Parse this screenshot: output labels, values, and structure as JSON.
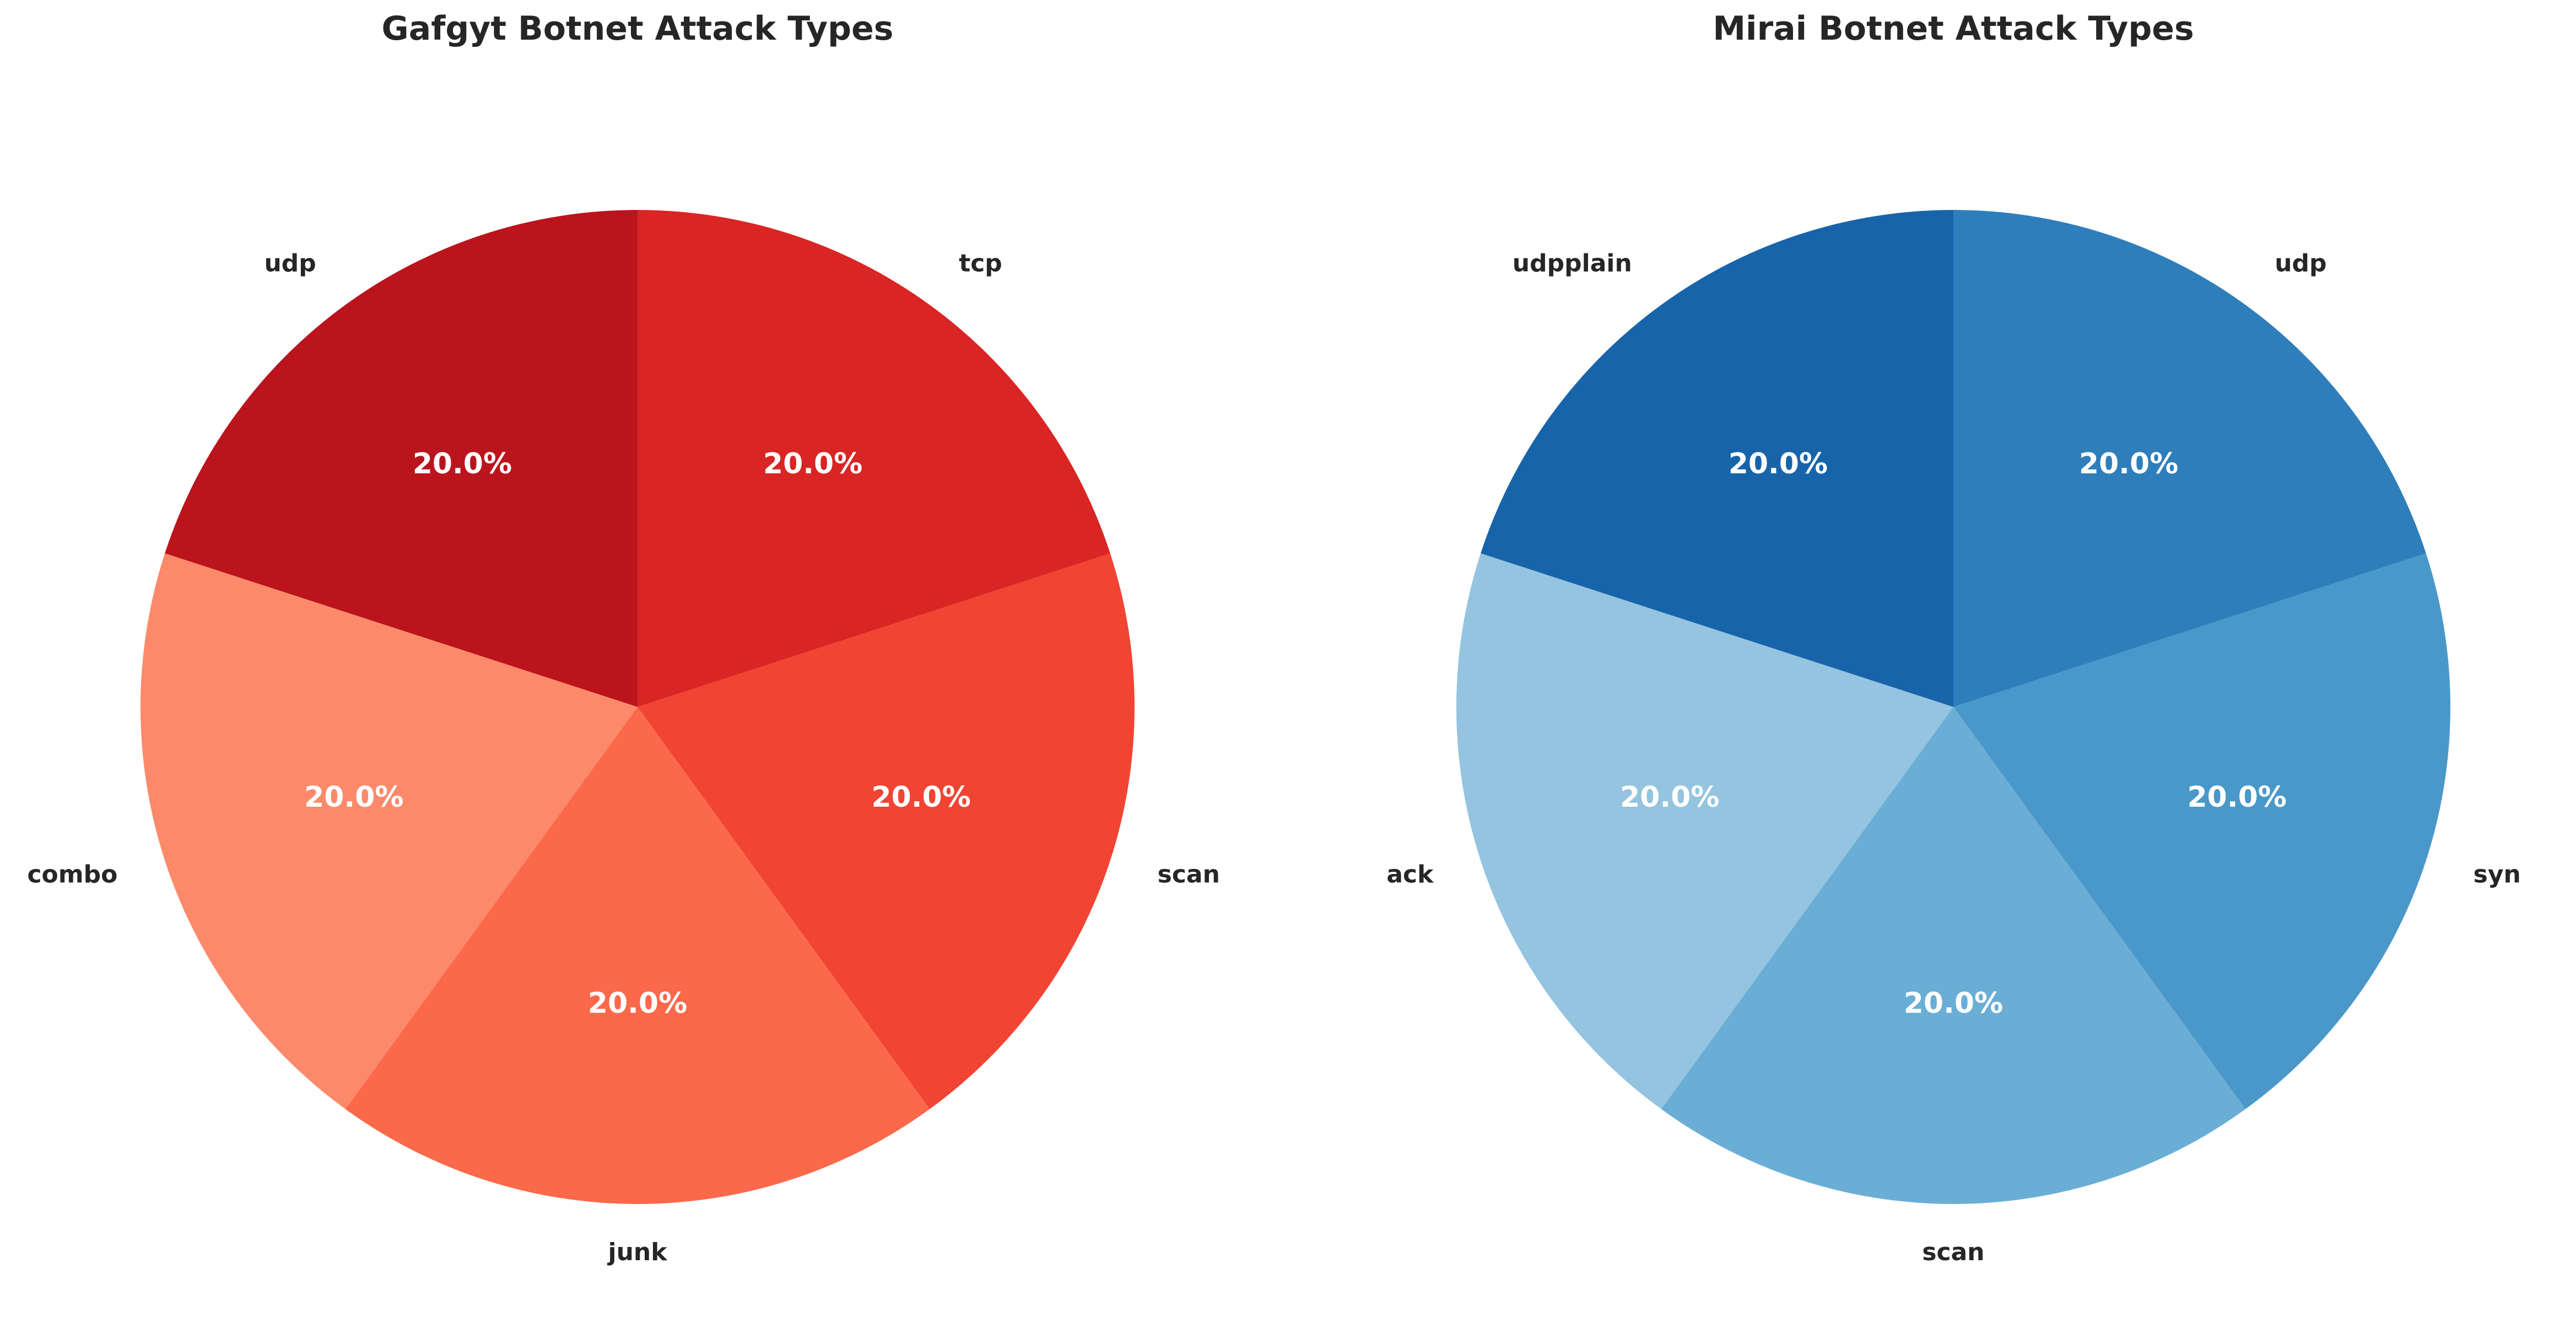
{
  "chart_data": [
    {
      "type": "pie",
      "title": "Gafgyt Botnet Attack Types",
      "categories": [
        "udp",
        "combo",
        "junk",
        "scan",
        "tcp"
      ],
      "values": [
        20.0,
        20.0,
        20.0,
        20.0,
        20.0
      ],
      "percent_labels": [
        "20.0%",
        "20.0%",
        "20.0%",
        "20.0%",
        "20.0%"
      ],
      "colors": [
        "#bb141d",
        "#fc8a6a",
        "#fb694a",
        "#f14432",
        "#d92523"
      ],
      "start_angle_deg": 90,
      "direction": "counterclockwise",
      "legend": "none"
    },
    {
      "type": "pie",
      "title": "Mirai Botnet Attack Types",
      "categories": [
        "udpplain",
        "ack",
        "scan",
        "syn",
        "udp"
      ],
      "values": [
        20.0,
        20.0,
        20.0,
        20.0,
        20.0
      ],
      "percent_labels": [
        "20.0%",
        "20.0%",
        "20.0%",
        "20.0%",
        "20.0%"
      ],
      "colors": [
        "#1764ab",
        "#94c4df",
        "#6aaed6",
        "#4a98c9",
        "#2e7ebc"
      ],
      "start_angle_deg": 90,
      "direction": "counterclockwise",
      "legend": "none"
    }
  ]
}
